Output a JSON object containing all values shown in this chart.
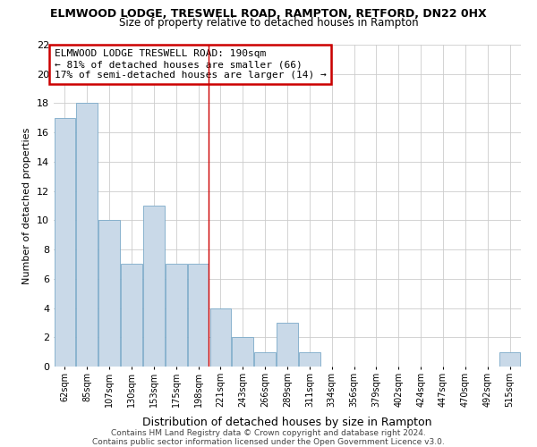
{
  "title": "ELMWOOD LODGE, TRESWELL ROAD, RAMPTON, RETFORD, DN22 0HX",
  "subtitle": "Size of property relative to detached houses in Rampton",
  "xlabel": "Distribution of detached houses by size in Rampton",
  "ylabel": "Number of detached properties",
  "footer_line1": "Contains HM Land Registry data © Crown copyright and database right 2024.",
  "footer_line2": "Contains public sector information licensed under the Open Government Licence v3.0.",
  "categories": [
    "62sqm",
    "85sqm",
    "107sqm",
    "130sqm",
    "153sqm",
    "175sqm",
    "198sqm",
    "221sqm",
    "243sqm",
    "266sqm",
    "289sqm",
    "311sqm",
    "334sqm",
    "356sqm",
    "379sqm",
    "402sqm",
    "424sqm",
    "447sqm",
    "470sqm",
    "492sqm",
    "515sqm"
  ],
  "values": [
    17,
    18,
    10,
    7,
    11,
    7,
    7,
    4,
    2,
    1,
    3,
    1,
    0,
    0,
    0,
    0,
    0,
    0,
    0,
    0,
    1
  ],
  "bar_color": "#c9d9e8",
  "bar_edge_color": "#7baac9",
  "highlight_bar_index": 6,
  "highlight_line_color": "#cc0000",
  "annotation_line1": "ELMWOOD LODGE TRESWELL ROAD: 190sqm",
  "annotation_line2": "← 81% of detached houses are smaller (66)",
  "annotation_line3": "17% of semi-detached houses are larger (14) →",
  "annotation_box_edge_color": "#cc0000",
  "ylim": [
    0,
    22
  ],
  "yticks": [
    0,
    2,
    4,
    6,
    8,
    10,
    12,
    14,
    16,
    18,
    20,
    22
  ],
  "grid_color": "#cccccc",
  "bg_color": "#ffffff",
  "title_fontsize": 9,
  "subtitle_fontsize": 8.5,
  "ylabel_fontsize": 8,
  "xlabel_fontsize": 9
}
